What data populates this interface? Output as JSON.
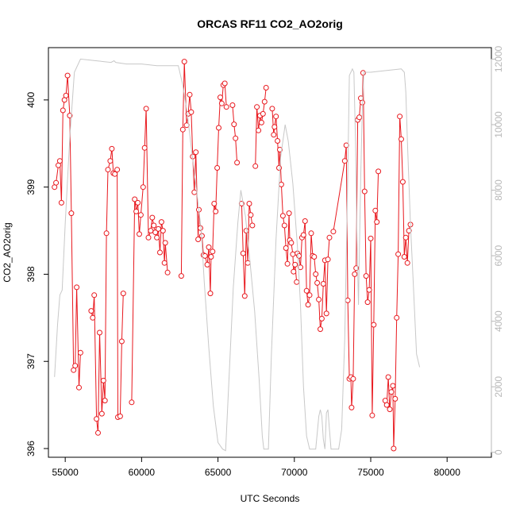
{
  "chart_data": {
    "type": "line",
    "title": "ORCAS RF11 CO2_AO2orig",
    "xlabel": "UTC Seconds",
    "ylabel": "CO2_AO2orig",
    "xlim": [
      53900,
      82900
    ],
    "ylim": [
      395.9,
      400.6
    ],
    "y2lim": [
      -150,
      12350
    ],
    "x_ticks": [
      55000,
      60000,
      65000,
      70000,
      75000,
      80000
    ],
    "y_ticks": [
      396,
      397,
      398,
      399,
      400
    ],
    "y2_ticks": [
      0,
      2000,
      4000,
      6000,
      8000,
      10000,
      12000
    ],
    "grid": false,
    "series": [
      {
        "color": "#e8181e",
        "style": "line-points",
        "axis": "left",
        "segments": [
          [
            [
              54300,
              399.0
            ],
            [
              54400,
              399.05
            ],
            [
              54550,
              399.25
            ],
            [
              54650,
              399.3
            ],
            [
              54750,
              398.82
            ],
            [
              54850,
              399.88
            ],
            [
              54950,
              400.0
            ],
            [
              55050,
              400.05
            ],
            [
              55150,
              400.28
            ],
            [
              55300,
              399.82
            ],
            [
              55400,
              398.7
            ],
            [
              55550,
              396.9
            ],
            [
              55650,
              396.95
            ],
            [
              55750,
              397.85
            ],
            [
              55900,
              396.7
            ],
            [
              56000,
              397.1
            ]
          ],
          [
            [
              56700,
              397.58
            ],
            [
              56800,
              397.5
            ],
            [
              56900,
              397.76
            ],
            [
              57050,
              396.34
            ],
            [
              57150,
              396.18
            ],
            [
              57250,
              397.33
            ],
            [
              57400,
              396.4
            ],
            [
              57500,
              396.78
            ],
            [
              57600,
              396.55
            ],
            [
              57700,
              398.47
            ],
            [
              57800,
              399.2
            ],
            [
              57950,
              399.3
            ],
            [
              58050,
              399.44
            ],
            [
              58150,
              399.16
            ],
            [
              58250,
              399.15
            ],
            [
              58400,
              399.2
            ],
            [
              58450,
              396.36
            ],
            [
              58600,
              396.37
            ],
            [
              58700,
              397.23
            ],
            [
              58800,
              397.78
            ]
          ],
          [
            [
              59350,
              396.53
            ],
            [
              59550,
              398.86
            ],
            [
              59650,
              398.72
            ],
            [
              59750,
              398.82
            ],
            [
              59850,
              398.46
            ],
            [
              59950,
              398.68
            ],
            [
              60100,
              399.0
            ],
            [
              60200,
              399.45
            ],
            [
              60300,
              399.9
            ],
            [
              60450,
              398.42
            ],
            [
              60600,
              398.5
            ],
            [
              60700,
              398.65
            ],
            [
              60800,
              398.56
            ],
            [
              60900,
              398.48
            ],
            [
              61000,
              398.42
            ],
            [
              61100,
              398.52
            ],
            [
              61200,
              398.25
            ],
            [
              61300,
              398.6
            ],
            [
              61400,
              398.5
            ],
            [
              61500,
              398.13
            ],
            [
              61550,
              398.36
            ],
            [
              61700,
              398.02
            ]
          ],
          [
            [
              62600,
              397.98
            ],
            [
              62700,
              399.66
            ],
            [
              62800,
              400.44
            ],
            [
              62950,
              399.71
            ],
            [
              63050,
              399.84
            ],
            [
              63150,
              400.06
            ],
            [
              63250,
              399.86
            ],
            [
              63350,
              399.35
            ],
            [
              63450,
              398.94
            ],
            [
              63550,
              399.4
            ],
            [
              63700,
              398.4
            ],
            [
              63750,
              398.74
            ],
            [
              63850,
              398.53
            ],
            [
              63950,
              398.44
            ],
            [
              64050,
              398.22
            ],
            [
              64150,
              398.21
            ],
            [
              64300,
              398.11
            ],
            [
              64400,
              398.31
            ],
            [
              64500,
              397.78
            ],
            [
              64550,
              398.2
            ],
            [
              64650,
              398.26
            ],
            [
              64750,
              398.81
            ],
            [
              64850,
              398.72
            ],
            [
              64950,
              399.22
            ],
            [
              65050,
              399.68
            ],
            [
              65150,
              400.03
            ],
            [
              65250,
              399.96
            ],
            [
              65350,
              400.17
            ],
            [
              65450,
              400.19
            ],
            [
              65550,
              399.92
            ]
          ],
          [
            [
              65950,
              399.94
            ],
            [
              66050,
              399.72
            ],
            [
              66150,
              399.56
            ],
            [
              66250,
              399.28
            ]
          ],
          [
            [
              66550,
              398.81
            ],
            [
              66650,
              398.24
            ],
            [
              66750,
              397.75
            ],
            [
              66850,
              398.5
            ],
            [
              66950,
              398.13
            ],
            [
              67050,
              398.81
            ],
            [
              67150,
              398.68
            ],
            [
              67250,
              398.56
            ]
          ],
          [
            [
              67450,
              399.24
            ],
            [
              67550,
              399.92
            ],
            [
              67650,
              399.65
            ],
            [
              67750,
              399.82
            ],
            [
              67850,
              399.74
            ],
            [
              67950,
              399.84
            ],
            [
              68050,
              399.98
            ],
            [
              68150,
              400.14
            ]
          ],
          [
            [
              68550,
              399.9
            ],
            [
              68650,
              399.6
            ],
            [
              68700,
              399.69
            ],
            [
              68800,
              399.81
            ],
            [
              68900,
              399.53
            ],
            [
              69000,
              399.22
            ],
            [
              69050,
              399.43
            ],
            [
              69150,
              399.03
            ],
            [
              69250,
              398.67
            ],
            [
              69350,
              398.56
            ],
            [
              69450,
              398.3
            ],
            [
              69550,
              398.12
            ],
            [
              69650,
              398.7
            ],
            [
              69700,
              398.39
            ],
            [
              69800,
              398.36
            ],
            [
              69900,
              398.23
            ],
            [
              69950,
              398.03
            ],
            [
              70050,
              398.11
            ],
            [
              70150,
              397.91
            ]
          ],
          [
            [
              70200,
              398.24
            ],
            [
              70300,
              398.21
            ],
            [
              70400,
              398.08
            ],
            [
              70500,
              398.42
            ],
            [
              70600,
              398.45
            ],
            [
              70700,
              398.61
            ],
            [
              70800,
              397.81
            ],
            [
              70900,
              397.65
            ],
            [
              71000,
              397.76
            ],
            [
              71100,
              398.47
            ],
            [
              71200,
              398.21
            ],
            [
              71300,
              398.2
            ],
            [
              71400,
              398.0
            ],
            [
              71500,
              397.9
            ],
            [
              71600,
              397.71
            ],
            [
              71700,
              397.37
            ],
            [
              71800,
              397.49
            ],
            [
              71900,
              397.89
            ],
            [
              72000,
              398.16
            ],
            [
              72100,
              397.55
            ],
            [
              72200,
              398.17
            ],
            [
              72300,
              398.42
            ]
          ],
          [
            [
              72550,
              398.49
            ],
            [
              73300,
              399.3
            ],
            [
              73400,
              399.48
            ],
            [
              73500,
              397.7
            ],
            [
              73600,
              396.8
            ],
            [
              73700,
              396.82
            ],
            [
              73750,
              396.47
            ],
            [
              73850,
              396.8
            ],
            [
              73950,
              398.0
            ],
            [
              74050,
              398.07
            ],
            [
              74150,
              399.77
            ],
            [
              74250,
              399.8
            ],
            [
              74350,
              400.02
            ],
            [
              74450,
              399.97
            ],
            [
              74500,
              400.31
            ],
            [
              74600,
              398.95
            ],
            [
              74700,
              397.98
            ],
            [
              74800,
              397.68
            ],
            [
              74900,
              397.82
            ],
            [
              75000,
              398.41
            ],
            [
              75100,
              396.38
            ],
            [
              75200,
              397.42
            ],
            [
              75300,
              398.73
            ],
            [
              75400,
              398.6
            ],
            [
              75500,
              399.18
            ]
          ],
          [
            [
              75950,
              396.55
            ],
            [
              76050,
              396.5
            ],
            [
              76150,
              396.82
            ],
            [
              76250,
              396.45
            ],
            [
              76350,
              396.65
            ],
            [
              76450,
              396.72
            ],
            [
              76500,
              396.0
            ],
            [
              76600,
              396.57
            ],
            [
              76700,
              397.5
            ],
            [
              76800,
              398.23
            ],
            [
              76900,
              399.81
            ],
            [
              77000,
              399.55
            ],
            [
              77100,
              399.06
            ],
            [
              77200,
              398.2
            ],
            [
              77300,
              398.42
            ],
            [
              77400,
              398.13
            ],
            [
              77500,
              398.5
            ],
            [
              77600,
              398.57
            ]
          ]
        ]
      },
      {
        "color": "#c8c8c8",
        "style": "line",
        "axis": "right",
        "points": [
          [
            54300,
            2300
          ],
          [
            54500,
            3900
          ],
          [
            54650,
            4800
          ],
          [
            54800,
            4950
          ],
          [
            55000,
            7000
          ],
          [
            55300,
            9600
          ],
          [
            55600,
            11600
          ],
          [
            56000,
            12000
          ],
          [
            57000,
            11950
          ],
          [
            58000,
            11900
          ],
          [
            58200,
            11950
          ],
          [
            58300,
            11900
          ],
          [
            59000,
            11850
          ],
          [
            60000,
            11850
          ],
          [
            61000,
            11800
          ],
          [
            62000,
            11800
          ],
          [
            62400,
            11800
          ],
          [
            62700,
            11200
          ],
          [
            63000,
            10300
          ],
          [
            63300,
            9100
          ],
          [
            63600,
            8000
          ],
          [
            63900,
            6800
          ],
          [
            64100,
            5200
          ],
          [
            64400,
            3200
          ],
          [
            64700,
            1400
          ],
          [
            65000,
            300
          ],
          [
            65300,
            100
          ],
          [
            65500,
            50
          ],
          [
            65700,
            2000
          ],
          [
            66000,
            5000
          ],
          [
            66300,
            7000
          ],
          [
            66500,
            8000
          ],
          [
            66800,
            7200
          ],
          [
            67100,
            5800
          ],
          [
            67400,
            4300
          ],
          [
            67700,
            2200
          ],
          [
            67900,
            500
          ],
          [
            68000,
            100
          ],
          [
            68300,
            100
          ],
          [
            68500,
            3000
          ],
          [
            68800,
            6500
          ],
          [
            69100,
            9000
          ],
          [
            69400,
            10000
          ],
          [
            69600,
            9500
          ],
          [
            69900,
            8200
          ],
          [
            70200,
            6300
          ],
          [
            70400,
            4500
          ],
          [
            70600,
            2000
          ],
          [
            70800,
            500
          ],
          [
            71000,
            100
          ],
          [
            71400,
            100
          ],
          [
            71600,
            1100
          ],
          [
            71700,
            1300
          ],
          [
            71800,
            1100
          ],
          [
            71900,
            400
          ],
          [
            72000,
            100
          ],
          [
            72100,
            1200
          ],
          [
            72200,
            1300
          ],
          [
            72300,
            700
          ],
          [
            72400,
            100
          ],
          [
            72900,
            100
          ],
          [
            73100,
            700
          ],
          [
            73300,
            3500
          ],
          [
            73500,
            8500
          ],
          [
            73600,
            11500
          ],
          [
            73700,
            11600
          ],
          [
            73800,
            11700
          ],
          [
            73900,
            11600
          ],
          [
            74000,
            9500
          ],
          [
            74100,
            6500
          ],
          [
            74200,
            4500
          ],
          [
            74250,
            6000
          ],
          [
            74350,
            8500
          ],
          [
            74450,
            10500
          ],
          [
            74550,
            11600
          ],
          [
            74650,
            11600
          ],
          [
            75000,
            11600
          ],
          [
            76000,
            11650
          ],
          [
            77000,
            11700
          ],
          [
            77200,
            11600
          ],
          [
            77300,
            11000
          ],
          [
            77400,
            9500
          ],
          [
            77600,
            7000
          ],
          [
            77800,
            5000
          ],
          [
            78000,
            3000
          ],
          [
            78200,
            2600
          ]
        ]
      }
    ]
  }
}
